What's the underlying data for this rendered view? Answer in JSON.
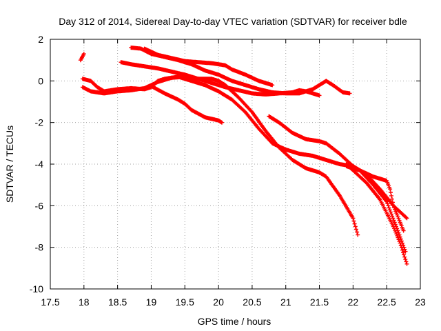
{
  "chart_data": {
    "type": "scatter",
    "title": "Day 312 of 2014, Sidereal Day-to-day VTEC variation (SDTVAR) for receiver bdle",
    "xlabel": "GPS time / hours",
    "ylabel": "SDTVAR / TECUs",
    "xlim": [
      17.5,
      23
    ],
    "ylim": [
      -10,
      2
    ],
    "xticks": [
      17.5,
      18,
      18.5,
      19,
      19.5,
      20,
      20.5,
      21,
      21.5,
      22,
      22.5,
      23
    ],
    "xtick_labels": [
      "17.5",
      "18",
      "18.5",
      "19",
      "19.5",
      "20",
      "20.5",
      "21",
      "21.5",
      "22",
      "22.5",
      "23"
    ],
    "yticks": [
      2,
      0,
      -2,
      -4,
      -6,
      -8,
      -10
    ],
    "ytick_labels": [
      "2",
      "0",
      "-2",
      "-4",
      "-6",
      "-8",
      "-10"
    ],
    "grid": true,
    "marker": "+",
    "series_color": "#ff0000",
    "series": [
      {
        "name": "track-a",
        "points": [
          [
            17.95,
            1.0
          ],
          [
            18.0,
            1.3
          ]
        ]
      },
      {
        "name": "track-b",
        "points": [
          [
            17.98,
            0.1
          ],
          [
            18.1,
            0.0
          ],
          [
            18.2,
            -0.3
          ],
          [
            18.3,
            -0.5
          ],
          [
            18.5,
            -0.4
          ],
          [
            18.7,
            -0.35
          ],
          [
            18.9,
            -0.4
          ],
          [
            19.0,
            -0.3
          ],
          [
            19.1,
            0.0
          ],
          [
            19.2,
            0.1
          ],
          [
            19.4,
            0.2
          ],
          [
            19.6,
            0.0
          ],
          [
            19.8,
            -0.2
          ],
          [
            20.0,
            -0.5
          ],
          [
            20.2,
            -0.9
          ],
          [
            20.4,
            -1.5
          ],
          [
            20.6,
            -2.3
          ],
          [
            20.8,
            -3.0
          ],
          [
            21.0,
            -3.3
          ],
          [
            21.2,
            -3.5
          ],
          [
            21.4,
            -3.6
          ],
          [
            21.6,
            -3.8
          ],
          [
            21.8,
            -4.0
          ],
          [
            22.0,
            -4.1
          ],
          [
            22.2,
            -4.5
          ],
          [
            22.4,
            -5.2
          ],
          [
            22.6,
            -6.0
          ],
          [
            22.8,
            -6.6
          ]
        ]
      },
      {
        "name": "track-c",
        "points": [
          [
            17.98,
            -0.3
          ],
          [
            18.1,
            -0.5
          ],
          [
            18.3,
            -0.6
          ],
          [
            18.5,
            -0.5
          ],
          [
            18.7,
            -0.45
          ],
          [
            18.9,
            -0.35
          ],
          [
            19.0,
            -0.2
          ],
          [
            19.1,
            -0.05
          ],
          [
            19.3,
            0.15
          ],
          [
            19.5,
            0.2
          ],
          [
            19.7,
            0.1
          ],
          [
            19.9,
            0.1
          ],
          [
            20.0,
            0.0
          ],
          [
            20.1,
            -0.2
          ],
          [
            20.2,
            -0.5
          ],
          [
            20.3,
            -0.8
          ],
          [
            20.5,
            -1.5
          ],
          [
            20.7,
            -2.4
          ],
          [
            20.9,
            -3.2
          ],
          [
            21.1,
            -3.8
          ],
          [
            21.3,
            -4.2
          ],
          [
            21.5,
            -4.4
          ],
          [
            21.6,
            -4.6
          ],
          [
            21.8,
            -5.5
          ],
          [
            22.0,
            -6.6
          ],
          [
            22.07,
            -7.4
          ]
        ]
      },
      {
        "name": "track-d",
        "points": [
          [
            18.55,
            0.9
          ],
          [
            18.7,
            0.8
          ],
          [
            18.9,
            0.7
          ],
          [
            19.1,
            0.6
          ],
          [
            19.3,
            0.45
          ],
          [
            19.5,
            0.3
          ],
          [
            19.7,
            0.1
          ],
          [
            19.9,
            -0.1
          ],
          [
            20.1,
            -0.3
          ],
          [
            20.3,
            -0.45
          ],
          [
            20.5,
            -0.6
          ],
          [
            20.7,
            -0.65
          ],
          [
            20.9,
            -0.6
          ],
          [
            21.1,
            -0.55
          ],
          [
            21.2,
            -0.45
          ],
          [
            21.3,
            -0.5
          ],
          [
            21.4,
            -0.6
          ],
          [
            21.5,
            -0.7
          ]
        ]
      },
      {
        "name": "track-e",
        "points": [
          [
            18.7,
            1.6
          ],
          [
            18.85,
            1.55
          ],
          [
            19.0,
            1.3
          ],
          [
            19.2,
            1.15
          ],
          [
            19.4,
            1.0
          ],
          [
            19.6,
            0.8
          ],
          [
            19.8,
            0.5
          ],
          [
            20.0,
            0.3
          ],
          [
            20.2,
            0.0
          ],
          [
            20.4,
            -0.2
          ],
          [
            20.6,
            -0.4
          ],
          [
            20.8,
            -0.55
          ],
          [
            21.0,
            -0.6
          ],
          [
            21.2,
            -0.6
          ],
          [
            21.4,
            -0.4
          ],
          [
            21.5,
            -0.2
          ],
          [
            21.6,
            0.0
          ],
          [
            21.7,
            -0.2
          ],
          [
            21.85,
            -0.55
          ],
          [
            21.95,
            -0.6
          ]
        ]
      },
      {
        "name": "track-f",
        "points": [
          [
            18.9,
            1.55
          ],
          [
            19.1,
            1.25
          ],
          [
            19.3,
            1.1
          ],
          [
            19.5,
            0.95
          ],
          [
            19.7,
            0.9
          ],
          [
            19.9,
            0.85
          ],
          [
            20.1,
            0.75
          ],
          [
            20.2,
            0.55
          ],
          [
            20.4,
            0.3
          ],
          [
            20.6,
            0.0
          ],
          [
            20.8,
            -0.2
          ]
        ]
      },
      {
        "name": "track-g",
        "points": [
          [
            19.0,
            -0.25
          ],
          [
            19.2,
            -0.6
          ],
          [
            19.4,
            -0.9
          ],
          [
            19.5,
            -1.1
          ],
          [
            19.6,
            -1.4
          ],
          [
            19.8,
            -1.75
          ],
          [
            20.0,
            -1.9
          ],
          [
            20.05,
            -2.0
          ]
        ]
      },
      {
        "name": "track-h",
        "points": [
          [
            20.75,
            -1.7
          ],
          [
            20.9,
            -2.0
          ],
          [
            21.1,
            -2.5
          ],
          [
            21.3,
            -2.8
          ],
          [
            21.5,
            -2.9
          ],
          [
            21.6,
            -3.0
          ],
          [
            21.8,
            -3.5
          ],
          [
            22.0,
            -4.1
          ],
          [
            22.1,
            -4.3
          ],
          [
            22.3,
            -5.0
          ],
          [
            22.5,
            -5.8
          ],
          [
            22.7,
            -7.5
          ],
          [
            22.78,
            -8.2
          ]
        ]
      },
      {
        "name": "track-i",
        "points": [
          [
            21.9,
            -4.1
          ],
          [
            22.1,
            -4.3
          ],
          [
            22.3,
            -4.6
          ],
          [
            22.5,
            -4.8
          ],
          [
            22.55,
            -5.2
          ],
          [
            22.6,
            -6.0
          ],
          [
            22.7,
            -6.8
          ],
          [
            22.75,
            -7.2
          ]
        ]
      },
      {
        "name": "track-j",
        "points": [
          [
            21.9,
            -4.0
          ],
          [
            22.0,
            -4.3
          ],
          [
            22.2,
            -4.9
          ],
          [
            22.4,
            -5.7
          ],
          [
            22.6,
            -7.0
          ],
          [
            22.7,
            -7.8
          ],
          [
            22.8,
            -8.8
          ]
        ]
      }
    ]
  }
}
